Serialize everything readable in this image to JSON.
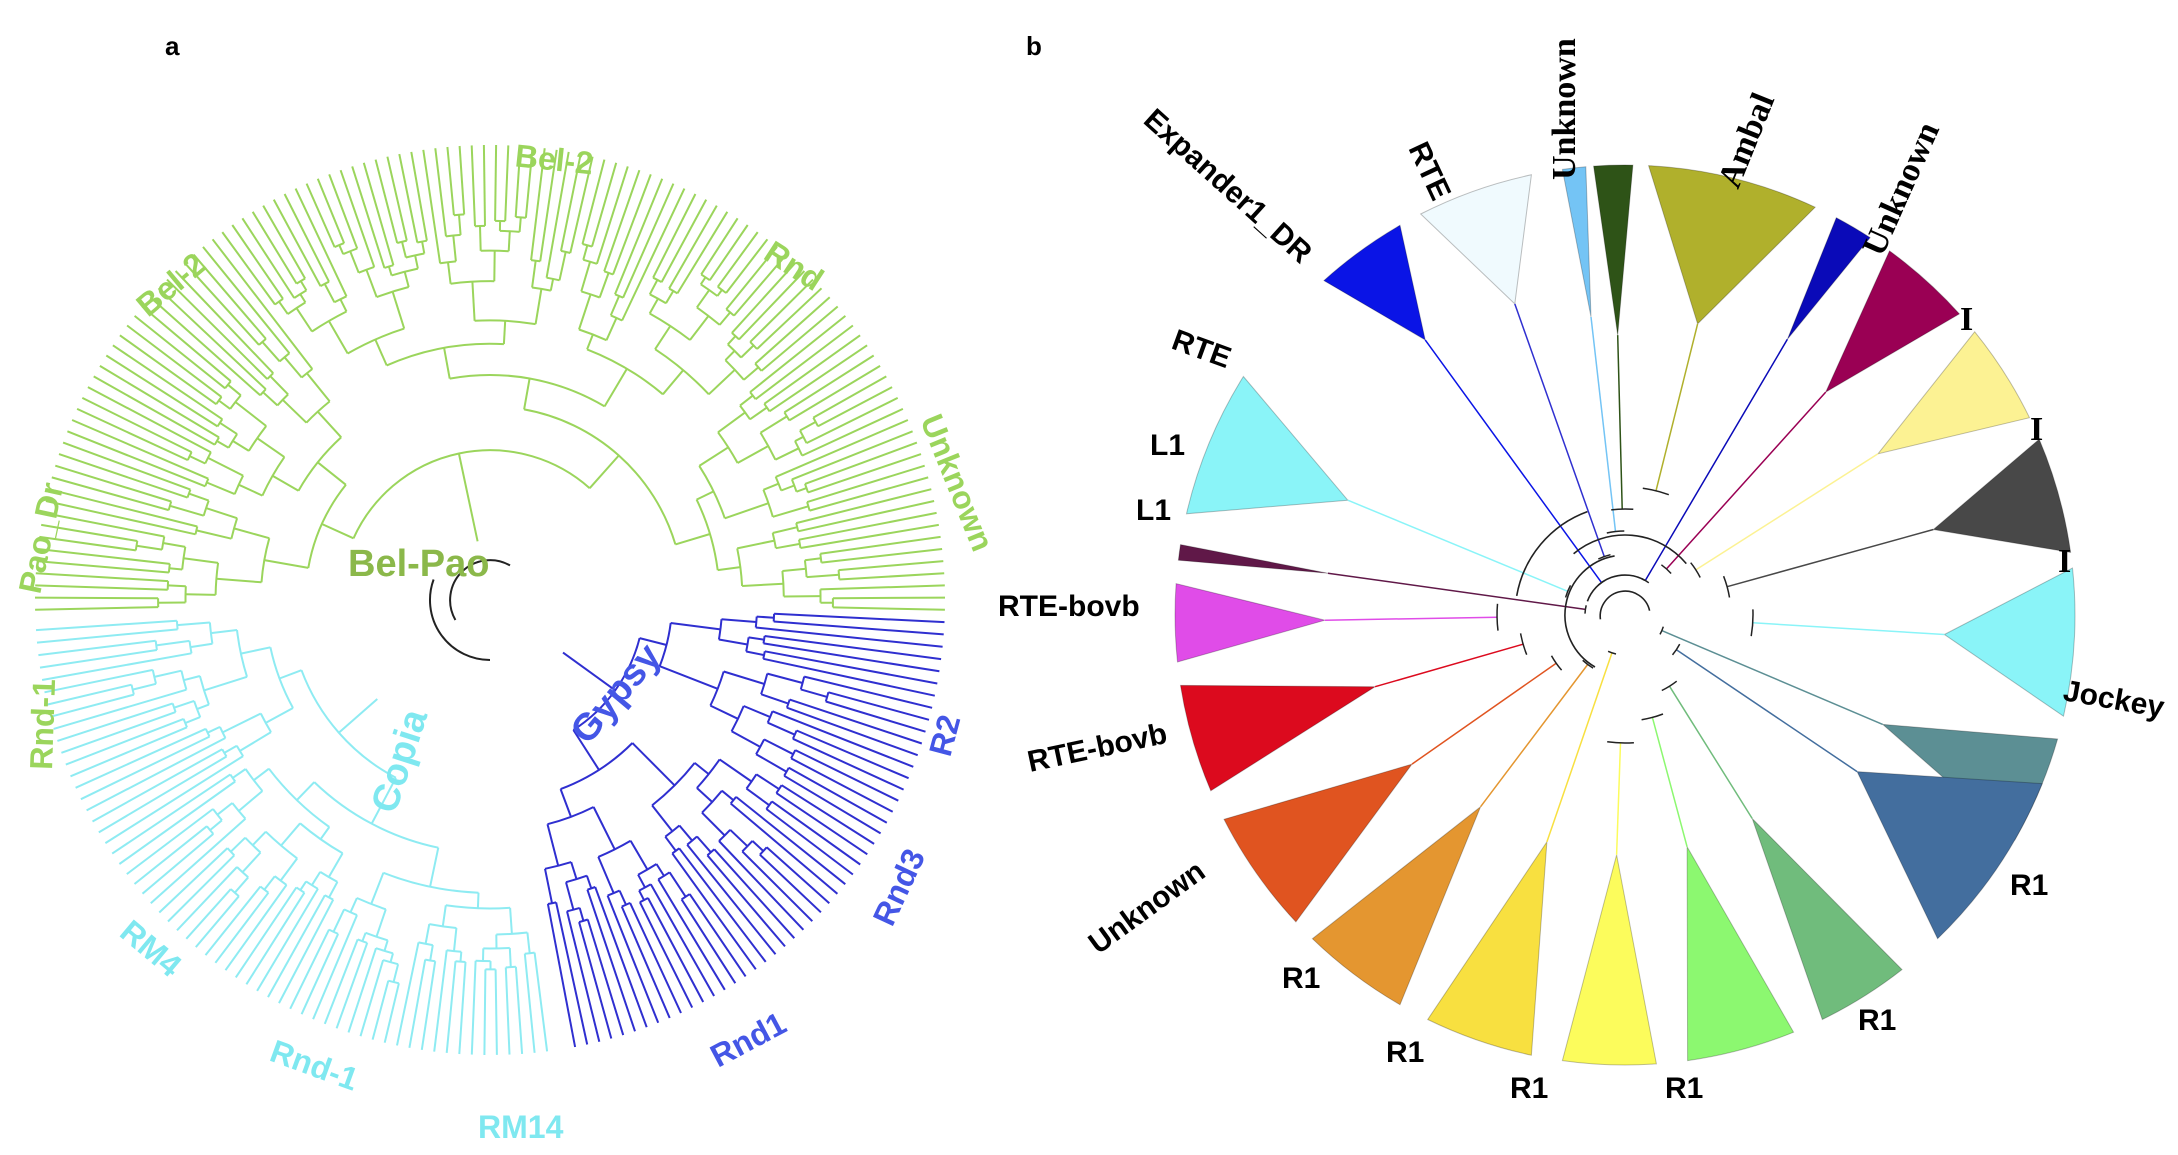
{
  "panels": {
    "a": {
      "letter": "a",
      "groups": [
        {
          "name": "Bel-Pao",
          "color": "#8BB84A",
          "branch_color": "#9BD55C"
        },
        {
          "name": "Copia",
          "color": "#7FE8F0",
          "branch_color": "#8EEBF2"
        },
        {
          "name": "Gypsy",
          "color": "#4456E6",
          "branch_color": "#2F2FD0"
        }
      ],
      "clade_labels": [
        {
          "text": "Bel-2",
          "color": "#9BD55C"
        },
        {
          "text": "Bel-2",
          "color": "#9BD55C"
        },
        {
          "text": "Rnd",
          "color": "#9BD55C"
        },
        {
          "text": "Unknown",
          "color": "#9BD55C"
        },
        {
          "text": "Pao_Dr",
          "color": "#9BD55C"
        },
        {
          "text": "Rnd-1",
          "color": "#9BD55C"
        },
        {
          "text": "RM4",
          "color": "#7FE8F0"
        },
        {
          "text": "Rnd-1",
          "color": "#7FE8F0"
        },
        {
          "text": "RM14",
          "color": "#7FE8F0"
        },
        {
          "text": "Rnd1",
          "color": "#4456E6"
        },
        {
          "text": "Rnd3",
          "color": "#4456E6"
        },
        {
          "text": "R2",
          "color": "#4456E6"
        }
      ]
    },
    "b": {
      "letter": "b",
      "clades": [
        {
          "label": "Expander1_DR",
          "color": "#0A14E6"
        },
        {
          "label": "RTE",
          "color": "#F0FAFE"
        },
        {
          "label": "Unknown",
          "color": "#74C4F5"
        },
        {
          "label": "",
          "color": "#2E5317"
        },
        {
          "label": "Ambal",
          "color": "#B0B02C"
        },
        {
          "label": "Unknown",
          "color": "#0A0AB8"
        },
        {
          "label": "I",
          "color": "#9A0054"
        },
        {
          "label": "I",
          "color": "#FCF293"
        },
        {
          "label": "I",
          "color": "#484848"
        },
        {
          "label": "Jockey",
          "color": "#8AF4F8"
        },
        {
          "label": "R1",
          "color": "#5C8F94"
        },
        {
          "label": "R1",
          "color": "#436E9E"
        },
        {
          "label": "R1",
          "color": "#70BC7C"
        },
        {
          "label": "R1",
          "color": "#8CF870"
        },
        {
          "label": "R1",
          "color": "#FCFC5C"
        },
        {
          "label": "R1",
          "color": "#F8E040"
        },
        {
          "label": "Unknown",
          "color": "#E49630"
        },
        {
          "label": "RTE-bovb",
          "color": "#E05420"
        },
        {
          "label": "RTE-bovb",
          "color": "#DC0A1E"
        },
        {
          "label": "L1",
          "color": "#E04CE8"
        },
        {
          "label": "L1",
          "color": "#601848"
        },
        {
          "label": "RTE",
          "color": "#8AF4F8"
        }
      ]
    }
  }
}
